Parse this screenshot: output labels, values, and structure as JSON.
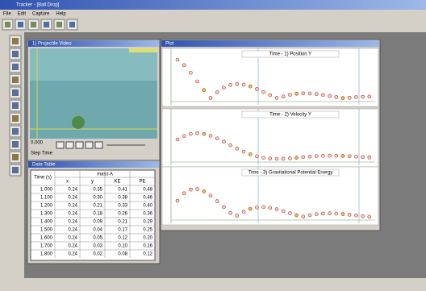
{
  "window": {
    "title": "Tracker - [Ball Drop]"
  },
  "menu": [
    "File",
    "Edit",
    "Capture",
    "Help"
  ],
  "video": {
    "title": "1) Projectile Video",
    "frame": "0.000",
    "step": "Step Time"
  },
  "table": {
    "title": "Data Table",
    "group": "mass A",
    "headers": [
      "Time (s)",
      "x",
      "y",
      "KE",
      "PE"
    ],
    "rows": [
      [
        "1.000",
        "0.24",
        "0.35",
        "0.41",
        "0.48"
      ],
      [
        "1.100",
        "0.24",
        "0.30",
        "0.38",
        "0.46"
      ],
      [
        "1.200",
        "0.24",
        "0.21",
        "0.33",
        "0.40"
      ],
      [
        "1.300",
        "0.24",
        "0.18",
        "0.26",
        "0.36"
      ],
      [
        "1.400",
        "0.24",
        "0.09",
        "0.21",
        "0.29"
      ],
      [
        "1.500",
        "0.24",
        "0.04",
        "0.17",
        "0.25"
      ],
      [
        "1.600",
        "0.24",
        "0.05",
        "0.12",
        "0.20"
      ],
      [
        "1.700",
        "0.24",
        "0.03",
        "0.10",
        "0.16"
      ],
      [
        "1.800",
        "0.24",
        "0.02",
        "0.08",
        "0.12"
      ]
    ]
  },
  "plots": {
    "title": "Plot",
    "charts": [
      {
        "title": "Time - 1) Position Y"
      },
      {
        "title": "Time - 2) Velocity Y"
      },
      {
        "title": "Time - 3) Gravitational Potential Energy"
      }
    ]
  }
}
